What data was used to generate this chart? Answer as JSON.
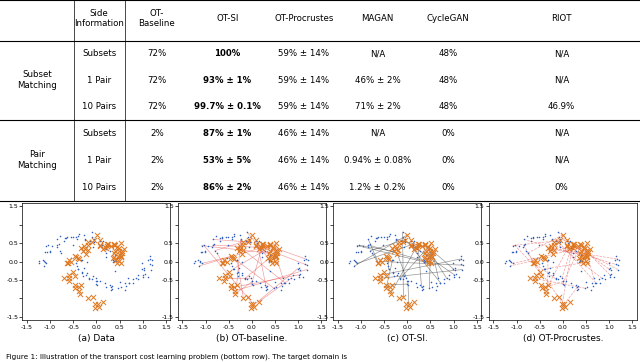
{
  "col_headers": [
    "",
    "Side\nInformation",
    "OT-\nBaseline",
    "OT-SI",
    "OT-Procrustes",
    "MAGAN",
    "CycleGAN",
    "RIOT"
  ],
  "group1_label": "Subset\nMatching",
  "group1_rows": [
    [
      "Subsets",
      "72%",
      "100%",
      "59% ± 14%",
      "N/A",
      "48%",
      "N/A"
    ],
    [
      "1 Pair",
      "72%",
      "93% ± 1%",
      "59% ± 14%",
      "46% ± 2%",
      "48%",
      "N/A"
    ],
    [
      "10 Pairs",
      "72%",
      "99.7% ± 0.1%",
      "59% ± 14%",
      "71% ± 2%",
      "48%",
      "46.9%"
    ]
  ],
  "group2_label": "Pair\nMatching",
  "group2_rows": [
    [
      "Subsets",
      "2%",
      "87% ± 1%",
      "46% ± 14%",
      "N/A",
      "0%",
      "N/A"
    ],
    [
      "1 Pair",
      "2%",
      "53% ± 5%",
      "46% ± 14%",
      "0.94% ± 0.08%",
      "0%",
      "N/A"
    ],
    [
      "10 Pairs",
      "2%",
      "86% ± 2%",
      "46% ± 14%",
      "1.2% ± 0.2%",
      "0%",
      "0%"
    ]
  ],
  "subplot_labels": [
    "(a) Data",
    "(b) OT-baseline.",
    "(c) OT-SI.",
    "(d) OT-Procrustes."
  ],
  "caption": "Figure 1: Illustration of the transport cost learning problem (bottom row). The target domain is",
  "blue_c": "#3060C0",
  "orange_c": "#E07820",
  "red_c": "#E03030",
  "dark_c": "#303030"
}
